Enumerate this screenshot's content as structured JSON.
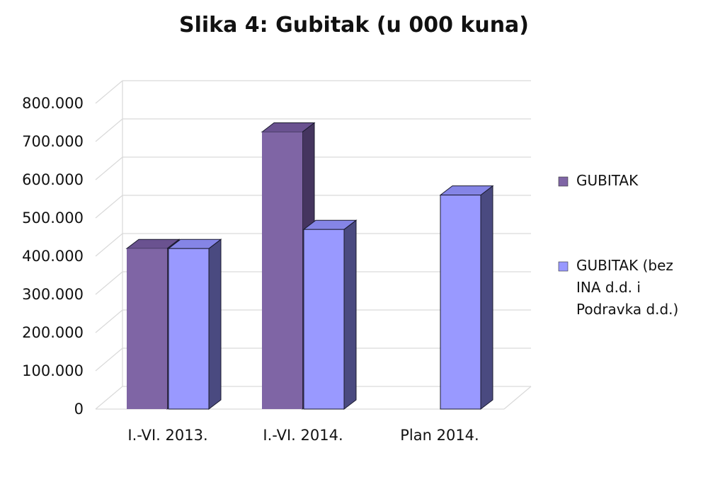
{
  "chart_data": {
    "type": "bar",
    "title": "Slika 4: Gubitak (u 000 kuna)",
    "categories": [
      "I.-VI. 2013.",
      "I.-VI. 2014.",
      "Plan 2014."
    ],
    "series": [
      {
        "name": "GUBITAK",
        "values": [
          420000,
          725000,
          null
        ]
      },
      {
        "name": "GUBITAK (bez INA d.d. i Podravka d.d.)",
        "values": [
          420000,
          470000,
          560000
        ]
      }
    ],
    "ylim": [
      0,
      800000
    ],
    "yticks": [
      "0",
      "100.000",
      "200.000",
      "300.000",
      "400.000",
      "500.000",
      "600.000",
      "700.000",
      "800.000"
    ],
    "grid": true,
    "legend_position": "right",
    "legend_lines": [
      [
        "GUBITAK"
      ],
      [
        "GUBITAK (bez",
        "INA d.d. i",
        "Podravka d.d.)"
      ]
    ],
    "colors": {
      "series1_front": "#7F65A5",
      "series1_side": "#45355F",
      "series1_top": "#6A5290",
      "series2_front": "#9999FF",
      "series2_side": "#4A4A80",
      "series2_top": "#8585E6",
      "grid": "#D9D9D9"
    }
  }
}
